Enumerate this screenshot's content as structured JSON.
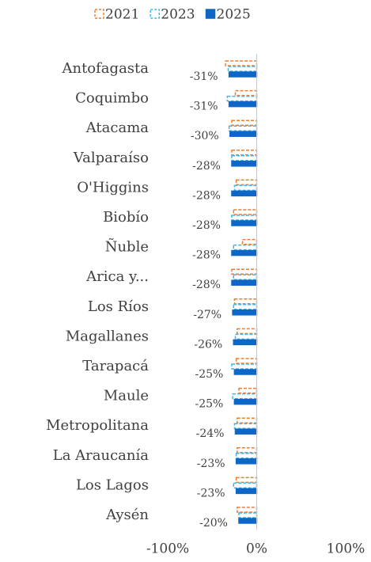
{
  "chart_data": {
    "type": "bar",
    "orientation": "horizontal",
    "categories": [
      "Antofagasta",
      "Coquimbo",
      "Atacama",
      "Valparaíso",
      "O'Higgins",
      "Biobío",
      "Ñuble",
      "Arica y...",
      "Los Ríos",
      "Magallanes",
      "Tarapacá",
      "Maule",
      "Metropolitana",
      "La Araucanía",
      "Los Lagos",
      "Aysén"
    ],
    "series": [
      {
        "name": "2021",
        "color": "#ed7d31",
        "style": "dashed-outline",
        "values": [
          -35,
          -24,
          -28,
          -28,
          -23,
          -26,
          -16,
          -28,
          -25,
          -22,
          -23,
          -20,
          -22,
          -22,
          -23,
          -22
        ]
      },
      {
        "name": "2023",
        "color": "#41b6e6",
        "style": "dashed-outline",
        "values": [
          -32,
          -33,
          -31,
          -28,
          -25,
          -28,
          -26,
          -26,
          -26,
          -24,
          -28,
          -27,
          -25,
          -23,
          -26,
          -20
        ]
      },
      {
        "name": "2025",
        "color": "#0e67c7",
        "style": "solid",
        "values": [
          -31,
          -31,
          -30,
          -28,
          -28,
          -28,
          -28,
          -28,
          -27,
          -26,
          -25,
          -25,
          -24,
          -23,
          -23,
          -20
        ],
        "value_labels": [
          "-31%",
          "-31%",
          "-30%",
          "-28%",
          "-28%",
          "-28%",
          "-28%",
          "-28%",
          "-27%",
          "-26%",
          "-25%",
          "-25%",
          "-24%",
          "-23%",
          "-23%",
          "-20%"
        ]
      }
    ],
    "xlim": [
      -100,
      100
    ],
    "xticks": [
      {
        "value": -100,
        "label": "-100%"
      },
      {
        "value": 0,
        "label": "0%"
      },
      {
        "value": 100,
        "label": "100%"
      }
    ],
    "legend": "top"
  }
}
